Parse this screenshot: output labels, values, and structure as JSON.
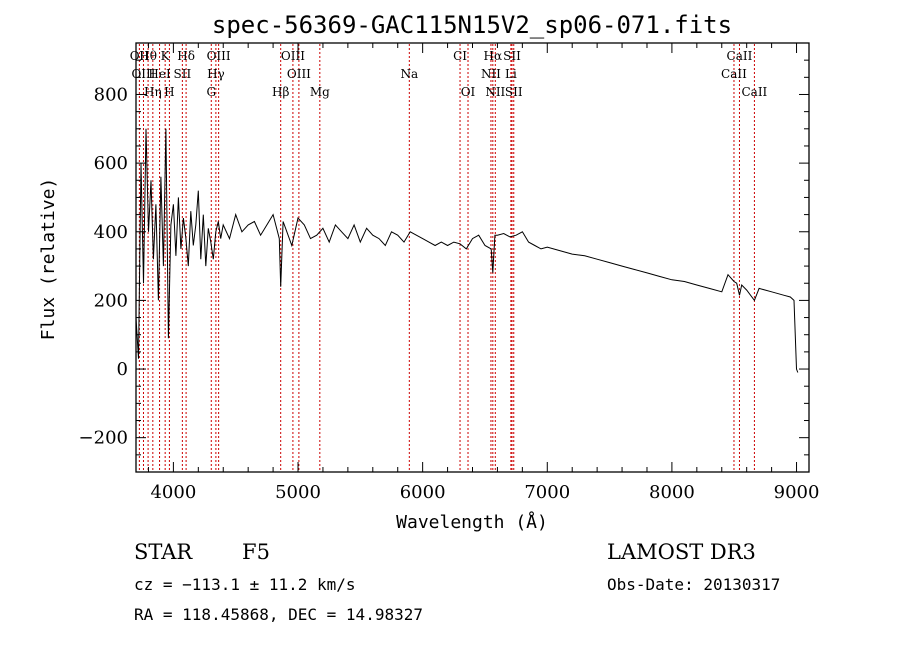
{
  "chart_data": {
    "type": "line",
    "title": "spec-56369-GAC115N15V2_sp06-071.fits",
    "xlabel": "Wavelength (Å)",
    "ylabel": "Flux (relative)",
    "xlim": [
      3700,
      9100
    ],
    "ylim": [
      -300,
      950
    ],
    "xticks": [
      4000,
      5000,
      6000,
      7000,
      8000,
      9000
    ],
    "yticks": [
      -200,
      0,
      200,
      400,
      600,
      800
    ],
    "xtick_labels": [
      "4000",
      "5000",
      "6000",
      "7000",
      "8000",
      "9000"
    ],
    "ytick_labels": [
      "−200",
      "0",
      "200",
      "400",
      "600",
      "800"
    ],
    "series": [
      {
        "name": "flux",
        "x": [
          3700,
          3720,
          3740,
          3760,
          3780,
          3800,
          3820,
          3840,
          3860,
          3880,
          3900,
          3920,
          3940,
          3960,
          3980,
          4000,
          4020,
          4040,
          4060,
          4080,
          4100,
          4120,
          4140,
          4160,
          4180,
          4200,
          4220,
          4240,
          4260,
          4280,
          4300,
          4320,
          4340,
          4360,
          4380,
          4400,
          4450,
          4500,
          4550,
          4600,
          4650,
          4700,
          4750,
          4800,
          4850,
          4861,
          4880,
          4900,
          4950,
          5000,
          5050,
          5100,
          5150,
          5200,
          5250,
          5300,
          5350,
          5400,
          5450,
          5500,
          5550,
          5600,
          5650,
          5700,
          5750,
          5800,
          5850,
          5900,
          5950,
          6000,
          6050,
          6100,
          6150,
          6200,
          6250,
          6300,
          6350,
          6400,
          6450,
          6500,
          6550,
          6563,
          6580,
          6600,
          6650,
          6700,
          6750,
          6800,
          6850,
          6900,
          6950,
          7000,
          7100,
          7200,
          7300,
          7400,
          7500,
          7600,
          7700,
          7800,
          7900,
          8000,
          8100,
          8200,
          8300,
          8400,
          8450,
          8498,
          8520,
          8542,
          8560,
          8600,
          8662,
          8700,
          8800,
          8900,
          8950,
          8980,
          9000,
          9010
        ],
        "y": [
          150,
          30,
          600,
          250,
          700,
          400,
          550,
          320,
          480,
          200,
          560,
          300,
          700,
          90,
          420,
          480,
          330,
          500,
          350,
          440,
          380,
          300,
          460,
          360,
          420,
          520,
          320,
          450,
          300,
          410,
          370,
          320,
          400,
          430,
          380,
          420,
          380,
          450,
          400,
          420,
          430,
          390,
          420,
          450,
          380,
          240,
          430,
          410,
          360,
          440,
          420,
          380,
          390,
          410,
          370,
          420,
          400,
          380,
          420,
          370,
          410,
          390,
          380,
          360,
          400,
          390,
          370,
          400,
          390,
          380,
          370,
          360,
          370,
          360,
          370,
          365,
          350,
          380,
          390,
          360,
          350,
          280,
          390,
          390,
          395,
          385,
          390,
          400,
          370,
          360,
          350,
          355,
          345,
          335,
          330,
          320,
          310,
          300,
          290,
          280,
          270,
          260,
          255,
          245,
          235,
          225,
          275,
          255,
          250,
          215,
          245,
          230,
          200,
          235,
          225,
          215,
          210,
          200,
          0,
          -10
        ],
        "color": "#000000"
      }
    ],
    "emission_lines": [
      {
        "label": "Hθ",
        "wavelength": 3797
      },
      {
        "label": "K",
        "wavelength": 3934
      },
      {
        "label": "Hδ",
        "wavelength": 4102
      },
      {
        "label": "OIII",
        "wavelength": 4363
      },
      {
        "label": "OIII",
        "wavelength": 4959
      },
      {
        "label": "CI",
        "wavelength": 6300
      },
      {
        "label": "Hα",
        "wavelength": 6563
      },
      {
        "label": "SII",
        "wavelength": 6717
      },
      {
        "label": "CaII",
        "wavelength": 8542
      },
      {
        "label": "OII",
        "wavelength": 3727
      },
      {
        "label": "HeI",
        "wavelength": 3889
      },
      {
        "label": "SII",
        "wavelength": 4072
      },
      {
        "label": "Hγ",
        "wavelength": 4341
      },
      {
        "label": "OIII",
        "wavelength": 5007
      },
      {
        "label": "Na",
        "wavelength": 5893
      },
      {
        "label": "NII",
        "wavelength": 6548
      },
      {
        "label": "Li",
        "wavelength": 6708
      },
      {
        "label": "CaII",
        "wavelength": 8498
      },
      {
        "label": "OIII",
        "wavelength": 3760
      },
      {
        "label": "Hη",
        "wavelength": 3835
      },
      {
        "label": "H",
        "wavelength": 3968
      },
      {
        "label": "G",
        "wavelength": 4304
      },
      {
        "label": "Hβ",
        "wavelength": 4861
      },
      {
        "label": "Mg",
        "wavelength": 5175
      },
      {
        "label": "OI",
        "wavelength": 6364
      },
      {
        "label": "NII",
        "wavelength": 6583
      },
      {
        "label": "SII",
        "wavelength": 6731
      },
      {
        "label": "CaII",
        "wavelength": 8662
      }
    ]
  },
  "info": {
    "object_class": "STAR",
    "subclass": "F5",
    "survey": "LAMOST DR3",
    "cz": "cz = −113.1 ± 11.2 km/s",
    "obs_date": "Obs-Date: 20130317",
    "coords": "RA = 118.45868, DEC =  14.98327"
  }
}
